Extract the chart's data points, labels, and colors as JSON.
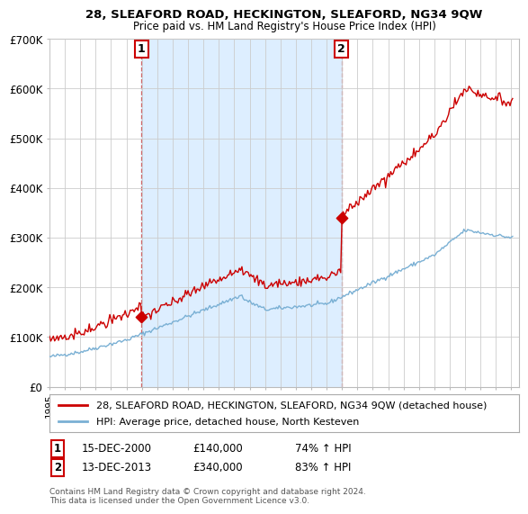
{
  "title": "28, SLEAFORD ROAD, HECKINGTON, SLEAFORD, NG34 9QW",
  "subtitle": "Price paid vs. HM Land Registry's House Price Index (HPI)",
  "legend_line1": "28, SLEAFORD ROAD, HECKINGTON, SLEAFORD, NG34 9QW (detached house)",
  "legend_line2": "HPI: Average price, detached house, North Kesteven",
  "annotation1_date": "15-DEC-2000",
  "annotation1_price": "£140,000",
  "annotation1_hpi": "74% ↑ HPI",
  "annotation2_date": "13-DEC-2013",
  "annotation2_price": "£340,000",
  "annotation2_hpi": "83% ↑ HPI",
  "footnote": "Contains HM Land Registry data © Crown copyright and database right 2024.\nThis data is licensed under the Open Government Licence v3.0.",
  "ylim": [
    0,
    700000
  ],
  "yticks": [
    0,
    100000,
    200000,
    300000,
    400000,
    500000,
    600000,
    700000
  ],
  "ytick_labels": [
    "£0",
    "£100K",
    "£200K",
    "£300K",
    "£400K",
    "£500K",
    "£600K",
    "£700K"
  ],
  "red_color": "#cc0000",
  "blue_color": "#7ab0d4",
  "shade_color": "#ddeeff",
  "background_color": "#ffffff",
  "grid_color": "#cccccc",
  "sale1_x": 2000.96,
  "sale1_y": 140000,
  "sale2_x": 2013.96,
  "sale2_y": 340000,
  "xmin": 1995,
  "xmax": 2025.5
}
